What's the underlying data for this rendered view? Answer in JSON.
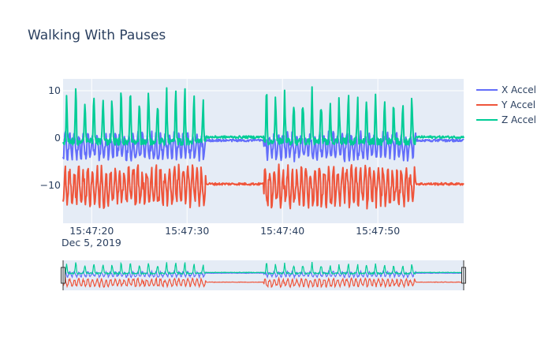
{
  "chart_data": {
    "type": "line",
    "title": "Walking With Pauses",
    "xlabel": "",
    "ylabel": "",
    "x_date_label": "Dec 5, 2019",
    "x_range": [
      "2019-12-05 15:47:17",
      "2019-12-05 15:47:59"
    ],
    "x_ticks": [
      "15:47:20",
      "15:47:30",
      "15:47:40",
      "15:47:50"
    ],
    "ylim": [
      -18,
      12.5
    ],
    "y_ticks": [
      10,
      0,
      -10
    ],
    "y_tick_labels": [
      "10",
      "0",
      "−10"
    ],
    "grid": true,
    "plot_background": "#e5ecf6",
    "legend_position": "top-right",
    "range_slider": true,
    "pauses": [
      [
        "2019-12-05 15:47:32",
        "2019-12-05 15:47:38"
      ],
      [
        "2019-12-05 15:47:54",
        "2019-12-05 15:47:59"
      ]
    ],
    "series": [
      {
        "name": "X Accel",
        "color": "#636efa",
        "baseline": -0.5,
        "walk_low": -5,
        "walk_high": 1.5
      },
      {
        "name": "Y Accel",
        "color": "#ef553b",
        "baseline": -9.7,
        "walk_low": -15,
        "walk_high": -5.5
      },
      {
        "name": "Z Accel",
        "color": "#00cc96",
        "baseline": 0.2,
        "walk_low": -1.5,
        "walk_high": 10.5
      }
    ]
  }
}
